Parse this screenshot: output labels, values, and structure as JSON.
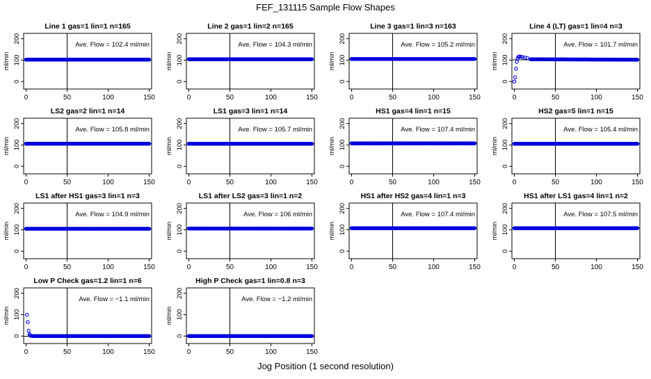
{
  "figure": {
    "title": "FEF_131115  Sample Flow Shapes",
    "xlabel": "Jog Position (1 second resolution)"
  },
  "chart_data": [
    {
      "type": "scatter",
      "title": "Line 1 gas=1 lin=1 n=165",
      "annotation": "Ave. Flow = 102.4  ml/min",
      "ylabel": "ml/min",
      "xlim": [
        0,
        150
      ],
      "ylim": [
        0,
        200
      ],
      "xticks": [
        "0",
        "50",
        "100",
        "150"
      ],
      "yticks": [
        "0",
        "100",
        "200"
      ],
      "vline_x": 50,
      "ave_flow": 102.4,
      "series": [
        {
          "name": "flow",
          "x": [
            0,
            150
          ],
          "y": [
            102.4,
            102.4
          ]
        }
      ]
    },
    {
      "type": "scatter",
      "title": "Line 2 gas=1 lin=2 n=165",
      "annotation": "Ave. Flow = 104.3  ml/min",
      "ylabel": "ml/min",
      "xlim": [
        0,
        150
      ],
      "ylim": [
        0,
        200
      ],
      "xticks": [
        "0",
        "50",
        "100",
        "150"
      ],
      "yticks": [
        "0",
        "100",
        "200"
      ],
      "vline_x": 50,
      "ave_flow": 104.3,
      "series": [
        {
          "name": "flow",
          "x": [
            0,
            150
          ],
          "y": [
            104.3,
            104.3
          ]
        }
      ]
    },
    {
      "type": "scatter",
      "title": "Line 3 gas=1 lin=3 n=163",
      "annotation": "Ave. Flow = 105.2  ml/min",
      "ylabel": "ml/min",
      "xlim": [
        0,
        150
      ],
      "ylim": [
        0,
        200
      ],
      "xticks": [
        "0",
        "50",
        "100",
        "150"
      ],
      "yticks": [
        "0",
        "100",
        "200"
      ],
      "vline_x": 50,
      "ave_flow": 105.2,
      "series": [
        {
          "name": "flow",
          "x": [
            0,
            150
          ],
          "y": [
            105.2,
            105.2
          ]
        }
      ]
    },
    {
      "type": "scatter",
      "title": "Line 4 (LT) gas=1 lin=4 n=3",
      "annotation": "Ave. Flow = 101.7  ml/min",
      "ylabel": "ml/min",
      "xlim": [
        0,
        150
      ],
      "ylim": [
        0,
        200
      ],
      "xticks": [
        "0",
        "50",
        "100",
        "150"
      ],
      "yticks": [
        "0",
        "100",
        "200"
      ],
      "vline_x": 50,
      "ave_flow": 101.7,
      "series": [
        {
          "name": "flow",
          "x": [
            0,
            1,
            2,
            3,
            4,
            5,
            6,
            8,
            10,
            13,
            16,
            20,
            150
          ],
          "y": [
            0,
            20,
            60,
            92,
            108,
            115,
            117,
            116,
            114,
            112,
            110,
            104,
            102
          ]
        }
      ]
    },
    {
      "type": "scatter",
      "title": "LS2 gas=2 lin=1 n=14",
      "annotation": "Ave. Flow = 105.8  ml/min",
      "ylabel": "ml/min",
      "xlim": [
        0,
        150
      ],
      "ylim": [
        0,
        200
      ],
      "xticks": [
        "0",
        "50",
        "100",
        "150"
      ],
      "yticks": [
        "0",
        "100",
        "200"
      ],
      "vline_x": 50,
      "ave_flow": 105.8,
      "series": [
        {
          "name": "flow",
          "x": [
            0,
            150
          ],
          "y": [
            105.8,
            105.8
          ]
        }
      ]
    },
    {
      "type": "scatter",
      "title": "LS1 gas=3 lin=1 n=14",
      "annotation": "Ave. Flow = 105.7  ml/min",
      "ylabel": "ml/min",
      "xlim": [
        0,
        150
      ],
      "ylim": [
        0,
        200
      ],
      "xticks": [
        "0",
        "50",
        "100",
        "150"
      ],
      "yticks": [
        "0",
        "100",
        "200"
      ],
      "vline_x": 50,
      "ave_flow": 105.7,
      "series": [
        {
          "name": "flow",
          "x": [
            0,
            150
          ],
          "y": [
            105.7,
            105.7
          ]
        }
      ]
    },
    {
      "type": "scatter",
      "title": "HS1 gas=4 lin=1 n=15",
      "annotation": "Ave. Flow = 107.4  ml/min",
      "ylabel": "ml/min",
      "xlim": [
        0,
        150
      ],
      "ylim": [
        0,
        200
      ],
      "xticks": [
        "0",
        "50",
        "100",
        "150"
      ],
      "yticks": [
        "0",
        "100",
        "200"
      ],
      "vline_x": 50,
      "ave_flow": 107.4,
      "series": [
        {
          "name": "flow",
          "x": [
            0,
            150
          ],
          "y": [
            107.4,
            107.4
          ]
        }
      ]
    },
    {
      "type": "scatter",
      "title": "HS2 gas=5 lin=1 n=15",
      "annotation": "Ave. Flow = 105.4  ml/min",
      "ylabel": "ml/min",
      "xlim": [
        0,
        150
      ],
      "ylim": [
        0,
        200
      ],
      "xticks": [
        "0",
        "50",
        "100",
        "150"
      ],
      "yticks": [
        "0",
        "100",
        "200"
      ],
      "vline_x": 50,
      "ave_flow": 105.4,
      "series": [
        {
          "name": "flow",
          "x": [
            0,
            150
          ],
          "y": [
            105.4,
            105.4
          ]
        }
      ]
    },
    {
      "type": "scatter",
      "title": "LS1 after HS1 gas=3 lin=1 n=3",
      "annotation": "Ave. Flow = 104.9  ml/min",
      "ylabel": "ml/min",
      "xlim": [
        0,
        150
      ],
      "ylim": [
        0,
        200
      ],
      "xticks": [
        "0",
        "50",
        "100",
        "150"
      ],
      "yticks": [
        "0",
        "100",
        "200"
      ],
      "vline_x": 50,
      "ave_flow": 104.9,
      "series": [
        {
          "name": "flow",
          "x": [
            0,
            150
          ],
          "y": [
            104.9,
            104.9
          ]
        }
      ]
    },
    {
      "type": "scatter",
      "title": "LS1 after LS2 gas=3 lin=1 n=2",
      "annotation": "Ave. Flow = 106  ml/min",
      "ylabel": "ml/min",
      "xlim": [
        0,
        150
      ],
      "ylim": [
        0,
        200
      ],
      "xticks": [
        "0",
        "50",
        "100",
        "150"
      ],
      "yticks": [
        "0",
        "100",
        "200"
      ],
      "vline_x": 50,
      "ave_flow": 106,
      "series": [
        {
          "name": "flow",
          "x": [
            0,
            150
          ],
          "y": [
            106,
            106
          ]
        }
      ]
    },
    {
      "type": "scatter",
      "title": "HS1 after HS2 gas=4 lin=1 n=3",
      "annotation": "Ave. Flow = 107.4  ml/min",
      "ylabel": "ml/min",
      "xlim": [
        0,
        150
      ],
      "ylim": [
        0,
        200
      ],
      "xticks": [
        "0",
        "50",
        "100",
        "150"
      ],
      "yticks": [
        "0",
        "100",
        "200"
      ],
      "vline_x": 50,
      "ave_flow": 107.4,
      "series": [
        {
          "name": "flow",
          "x": [
            0,
            150
          ],
          "y": [
            107.4,
            107.4
          ]
        }
      ]
    },
    {
      "type": "scatter",
      "title": "HS1 after LS1 gas=4 lin=1 n=2",
      "annotation": "Ave. Flow = 107.5  ml/min",
      "ylabel": "ml/min",
      "xlim": [
        0,
        150
      ],
      "ylim": [
        0,
        200
      ],
      "xticks": [
        "0",
        "50",
        "100",
        "150"
      ],
      "yticks": [
        "0",
        "100",
        "200"
      ],
      "vline_x": 50,
      "ave_flow": 107.5,
      "series": [
        {
          "name": "flow",
          "x": [
            0,
            150
          ],
          "y": [
            107.5,
            107.5
          ]
        }
      ]
    },
    {
      "type": "scatter",
      "title": "Low P Check gas=1.2 lin=1 n=6",
      "annotation": "Ave. Flow = −1.1  ml/min",
      "ylabel": "ml/min",
      "xlim": [
        0,
        150
      ],
      "ylim": [
        0,
        200
      ],
      "xticks": [
        "0",
        "50",
        "100",
        "150"
      ],
      "yticks": [
        "0",
        "100",
        "200"
      ],
      "vline_x": 50,
      "ave_flow": -1.1,
      "series": [
        {
          "name": "flow",
          "x": [
            1,
            2,
            3,
            4,
            5,
            6,
            8,
            150
          ],
          "y": [
            100,
            65,
            25,
            8,
            3,
            1,
            0,
            0
          ]
        }
      ]
    },
    {
      "type": "scatter",
      "title": "High P Check gas=1 lin=0.8 n=3",
      "annotation": "Ave. Flow = −1.2  ml/min",
      "ylabel": "ml/min",
      "xlim": [
        0,
        150
      ],
      "ylim": [
        0,
        200
      ],
      "xticks": [
        "0",
        "50",
        "100",
        "150"
      ],
      "yticks": [
        "0",
        "100",
        "200"
      ],
      "vline_x": 50,
      "ave_flow": -1.2,
      "series": [
        {
          "name": "flow",
          "x": [
            0,
            150
          ],
          "y": [
            0,
            0
          ]
        }
      ]
    }
  ],
  "colors": {
    "points": "#0000dd",
    "axes": "#000000",
    "background": "#ffffff"
  }
}
